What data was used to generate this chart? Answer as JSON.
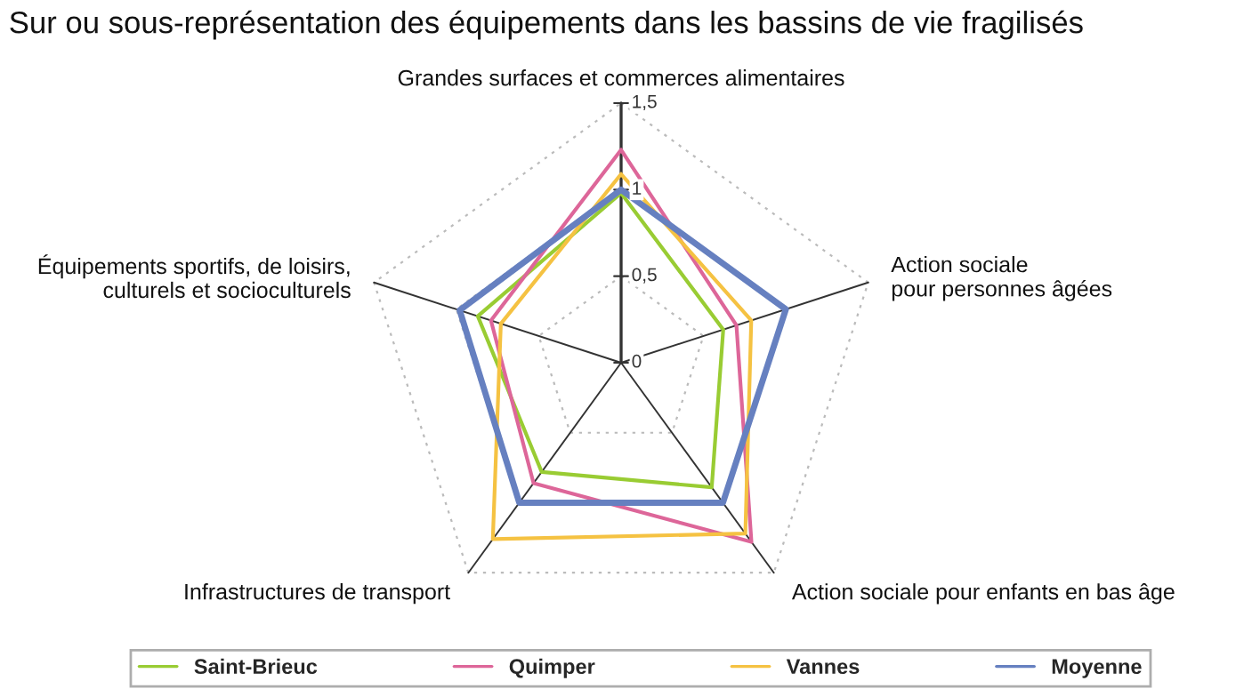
{
  "chart_data": {
    "type": "radar",
    "title": "Sur ou sous-représentation des équipements dans les bassins de vie fragilisés",
    "categories": [
      "Grandes surfaces et commerces alimentaires",
      "Action sociale\npour personnes âgées",
      "Action sociale pour enfants en bas âge",
      "Infrastructures de transport",
      "Équipements sportifs, de loisirs,\nculturels et socioculturels"
    ],
    "series": [
      {
        "name": "Saint-Brieuc",
        "color": "#99cc33",
        "values": [
          0.98,
          0.62,
          0.89,
          0.78,
          0.87
        ]
      },
      {
        "name": "Quimper",
        "color": "#dd6699",
        "values": [
          1.23,
          0.7,
          1.28,
          0.86,
          0.79
        ]
      },
      {
        "name": "Vannes",
        "color": "#f5c242",
        "values": [
          1.09,
          0.79,
          1.22,
          1.26,
          0.73
        ]
      },
      {
        "name": "Moyenne",
        "color": "#6680c0",
        "values": [
          1.0,
          1.0,
          1.0,
          1.0,
          0.98
        ]
      }
    ],
    "ylim": [
      0,
      1.5
    ],
    "yticks": [
      {
        "value": 0,
        "label": "0"
      },
      {
        "value": 0.5,
        "label": "0,5"
      },
      {
        "value": 1,
        "label": "1"
      },
      {
        "value": 1.5,
        "label": "1,5"
      }
    ],
    "grid": true,
    "legend": "bottom",
    "line_style": "solid",
    "marker": "none"
  }
}
